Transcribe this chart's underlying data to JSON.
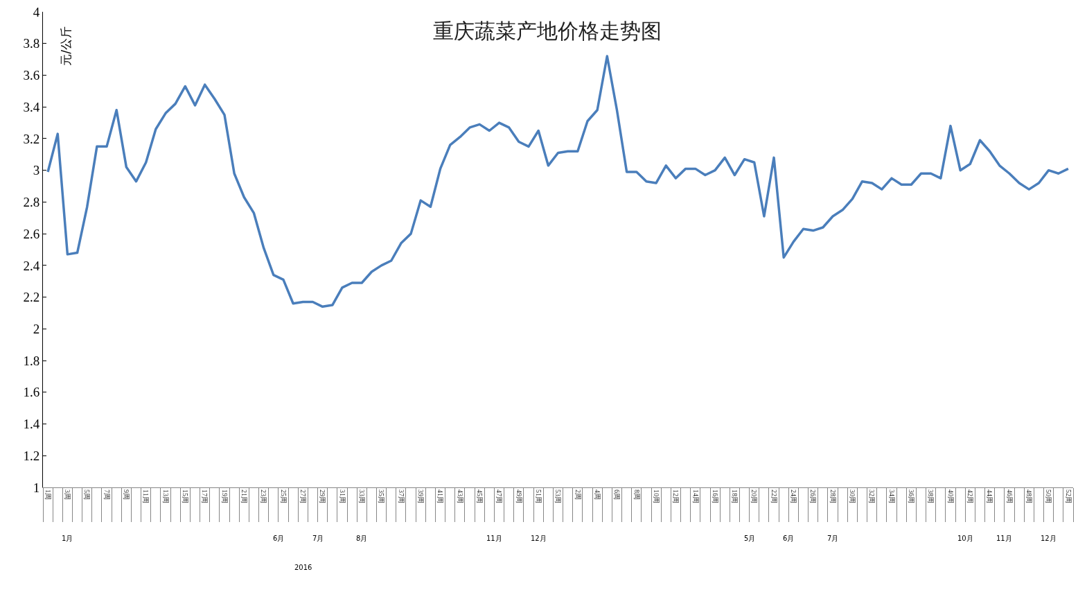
{
  "chart_data": {
    "type": "line",
    "title": "重庆蔬菜产地价格走势图",
    "ylabel": "元/公斤",
    "categories": [
      "1周",
      null,
      "3周",
      null,
      "5周",
      null,
      "7周",
      null,
      "9周",
      null,
      "11周",
      null,
      "13周",
      null,
      "15周",
      null,
      "17周",
      null,
      "19周",
      null,
      "21周",
      null,
      "23周",
      null,
      "25周",
      null,
      "27周",
      null,
      "29周",
      null,
      "31周",
      null,
      "33周",
      null,
      "35周",
      null,
      "37周",
      null,
      "39周",
      null,
      "41周",
      null,
      "43周",
      null,
      "45周",
      null,
      "47周",
      null,
      "49周",
      null,
      "51周",
      null,
      "53周",
      null,
      "2周",
      null,
      "4周",
      null,
      "6周",
      null,
      "8周",
      null,
      "10周",
      null,
      "12周",
      null,
      "14周",
      null,
      "16周",
      null,
      "18周",
      null,
      "20周",
      null,
      "22周",
      null,
      "24周",
      null,
      "26周",
      null,
      "28周",
      null,
      "30周",
      null,
      "32周",
      null,
      "34周",
      null,
      "36周",
      null,
      "38周",
      null,
      "40周",
      null,
      "42周",
      null,
      "44周",
      null,
      "46周",
      null,
      "48周",
      null,
      "50周",
      null,
      "52周"
    ],
    "series": [
      {
        "color": "#4a7ebb",
        "values": [
          2.99,
          3.23,
          2.47,
          2.48,
          2.77,
          3.15,
          3.15,
          3.38,
          3.02,
          2.93,
          3.05,
          3.26,
          3.36,
          3.42,
          3.53,
          3.41,
          3.54,
          3.45,
          3.35,
          2.98,
          2.83,
          2.73,
          2.51,
          2.34,
          2.31,
          2.16,
          2.17,
          2.17,
          2.14,
          2.15,
          2.26,
          2.29,
          2.29,
          2.36,
          2.4,
          2.43,
          2.54,
          2.6,
          2.81,
          2.77,
          3.01,
          3.16,
          3.21,
          3.27,
          3.29,
          3.25,
          3.3,
          3.27,
          3.18,
          3.15,
          3.25,
          3.03,
          3.11,
          3.12,
          3.12,
          3.31,
          3.38,
          3.72,
          3.38,
          2.99,
          2.99,
          2.93,
          2.92,
          3.03,
          2.95,
          3.01,
          3.01,
          2.97,
          3.0,
          3.08,
          2.97,
          3.07,
          3.05,
          2.71,
          3.08,
          2.45,
          2.55,
          2.63,
          2.62,
          2.64,
          2.71,
          2.75,
          2.82,
          2.93,
          2.92,
          2.88,
          2.95,
          2.91,
          2.91,
          2.98,
          2.98,
          2.95,
          3.28,
          3.0,
          3.04,
          3.19,
          3.12,
          3.03,
          2.98,
          2.92,
          2.88,
          2.92,
          3.0,
          2.98,
          3.01
        ]
      }
    ],
    "ylim": [
      1,
      4
    ],
    "yticks": [
      1,
      1.2,
      1.4,
      1.6,
      1.8,
      2,
      2.2,
      2.4,
      2.6,
      2.8,
      3,
      3.2,
      3.4,
      3.6,
      3.8,
      4
    ],
    "annotations": [
      "1月",
      "6月",
      "7月",
      "8月",
      "11月",
      "12月",
      "5月",
      "6月",
      "7月",
      "10月",
      "11月",
      "12月",
      "2016"
    ]
  }
}
